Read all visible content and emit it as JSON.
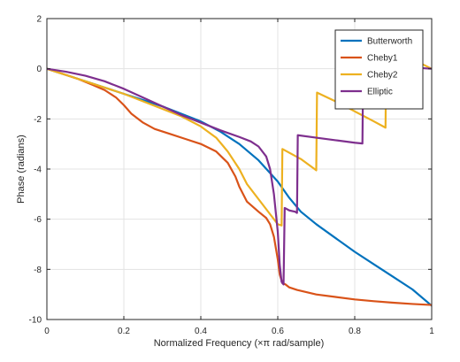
{
  "chart_data": {
    "type": "line",
    "title": "",
    "xlabel": "Normalized Frequency  (×π rad/sample)",
    "ylabel": "Phase (radians)",
    "xlim": [
      0,
      1
    ],
    "ylim": [
      -10,
      2
    ],
    "xticks": [
      0,
      0.2,
      0.4,
      0.6,
      0.8,
      1
    ],
    "xtick_labels": [
      "0",
      "0.2",
      "0.4",
      "0.6",
      "0.8",
      "1"
    ],
    "yticks": [
      -10,
      -8,
      -6,
      -4,
      -2,
      0,
      2
    ],
    "ytick_labels": [
      "-10",
      "-8",
      "-6",
      "-4",
      "-2",
      "0",
      "2"
    ],
    "grid": true,
    "legend_position": "top-right",
    "series": [
      {
        "name": "Butterworth",
        "color": "#0072BD",
        "points": [
          [
            0,
            0
          ],
          [
            0.05,
            -0.25
          ],
          [
            0.1,
            -0.5
          ],
          [
            0.15,
            -0.75
          ],
          [
            0.2,
            -1.0
          ],
          [
            0.25,
            -1.25
          ],
          [
            0.3,
            -1.5
          ],
          [
            0.35,
            -1.8
          ],
          [
            0.4,
            -2.1
          ],
          [
            0.45,
            -2.5
          ],
          [
            0.5,
            -3.0
          ],
          [
            0.55,
            -3.65
          ],
          [
            0.6,
            -4.5
          ],
          [
            0.63,
            -5.15
          ],
          [
            0.66,
            -5.7
          ],
          [
            0.7,
            -6.2
          ],
          [
            0.75,
            -6.75
          ],
          [
            0.8,
            -7.3
          ],
          [
            0.85,
            -7.8
          ],
          [
            0.9,
            -8.3
          ],
          [
            0.95,
            -8.8
          ],
          [
            1.0,
            -9.45
          ]
        ]
      },
      {
        "name": "Cheby1",
        "color": "#D95319",
        "points": [
          [
            0,
            0
          ],
          [
            0.04,
            -0.2
          ],
          [
            0.08,
            -0.4
          ],
          [
            0.12,
            -0.65
          ],
          [
            0.15,
            -0.85
          ],
          [
            0.18,
            -1.15
          ],
          [
            0.2,
            -1.45
          ],
          [
            0.22,
            -1.8
          ],
          [
            0.25,
            -2.15
          ],
          [
            0.28,
            -2.4
          ],
          [
            0.32,
            -2.6
          ],
          [
            0.36,
            -2.8
          ],
          [
            0.4,
            -3.0
          ],
          [
            0.44,
            -3.3
          ],
          [
            0.47,
            -3.75
          ],
          [
            0.49,
            -4.3
          ],
          [
            0.5,
            -4.7
          ],
          [
            0.52,
            -5.3
          ],
          [
            0.55,
            -5.7
          ],
          [
            0.57,
            -5.95
          ],
          [
            0.58,
            -6.2
          ],
          [
            0.59,
            -6.7
          ],
          [
            0.6,
            -7.6
          ],
          [
            0.605,
            -8.2
          ],
          [
            0.612,
            -8.55
          ],
          [
            0.62,
            -8.6
          ],
          [
            0.63,
            -8.72
          ],
          [
            0.65,
            -8.82
          ],
          [
            0.7,
            -9.0
          ],
          [
            0.75,
            -9.1
          ],
          [
            0.8,
            -9.2
          ],
          [
            0.85,
            -9.27
          ],
          [
            0.9,
            -9.33
          ],
          [
            0.95,
            -9.38
          ],
          [
            1.0,
            -9.42
          ]
        ]
      },
      {
        "name": "Cheby2",
        "color": "#EDB120",
        "points": [
          [
            0,
            0
          ],
          [
            0.05,
            -0.25
          ],
          [
            0.1,
            -0.5
          ],
          [
            0.15,
            -0.75
          ],
          [
            0.2,
            -1.0
          ],
          [
            0.25,
            -1.3
          ],
          [
            0.3,
            -1.6
          ],
          [
            0.35,
            -1.9
          ],
          [
            0.4,
            -2.3
          ],
          [
            0.44,
            -2.75
          ],
          [
            0.47,
            -3.3
          ],
          [
            0.5,
            -4.0
          ],
          [
            0.52,
            -4.6
          ],
          [
            0.55,
            -5.2
          ],
          [
            0.58,
            -5.8
          ],
          [
            0.6,
            -6.2
          ],
          [
            0.61,
            -6.25
          ],
          [
            0.612,
            -3.2
          ],
          [
            0.66,
            -3.6
          ],
          [
            0.7,
            -4.05
          ],
          [
            0.702,
            -0.95
          ],
          [
            0.75,
            -1.3
          ],
          [
            0.8,
            -1.7
          ],
          [
            0.85,
            -2.1
          ],
          [
            0.88,
            -2.35
          ],
          [
            0.882,
            0.75
          ],
          [
            0.92,
            0.55
          ],
          [
            0.96,
            0.3
          ],
          [
            1.0,
            0.0
          ]
        ]
      },
      {
        "name": "Elliptic",
        "color": "#7E2F8E",
        "points": [
          [
            0,
            0
          ],
          [
            0.05,
            -0.12
          ],
          [
            0.1,
            -0.28
          ],
          [
            0.15,
            -0.5
          ],
          [
            0.2,
            -0.8
          ],
          [
            0.25,
            -1.15
          ],
          [
            0.3,
            -1.5
          ],
          [
            0.35,
            -1.85
          ],
          [
            0.4,
            -2.15
          ],
          [
            0.45,
            -2.45
          ],
          [
            0.5,
            -2.72
          ],
          [
            0.53,
            -2.9
          ],
          [
            0.55,
            -3.1
          ],
          [
            0.57,
            -3.5
          ],
          [
            0.58,
            -4.0
          ],
          [
            0.59,
            -5.0
          ],
          [
            0.6,
            -6.5
          ],
          [
            0.605,
            -7.8
          ],
          [
            0.61,
            -8.5
          ],
          [
            0.615,
            -8.6
          ],
          [
            0.618,
            -5.55
          ],
          [
            0.63,
            -5.65
          ],
          [
            0.645,
            -5.7
          ],
          [
            0.65,
            -5.75
          ],
          [
            0.652,
            -2.65
          ],
          [
            0.7,
            -2.75
          ],
          [
            0.75,
            -2.85
          ],
          [
            0.8,
            -2.95
          ],
          [
            0.82,
            -2.98
          ],
          [
            0.822,
            0.15
          ],
          [
            0.9,
            0.1
          ],
          [
            0.95,
            0.05
          ],
          [
            1.0,
            0.0
          ]
        ]
      }
    ]
  }
}
